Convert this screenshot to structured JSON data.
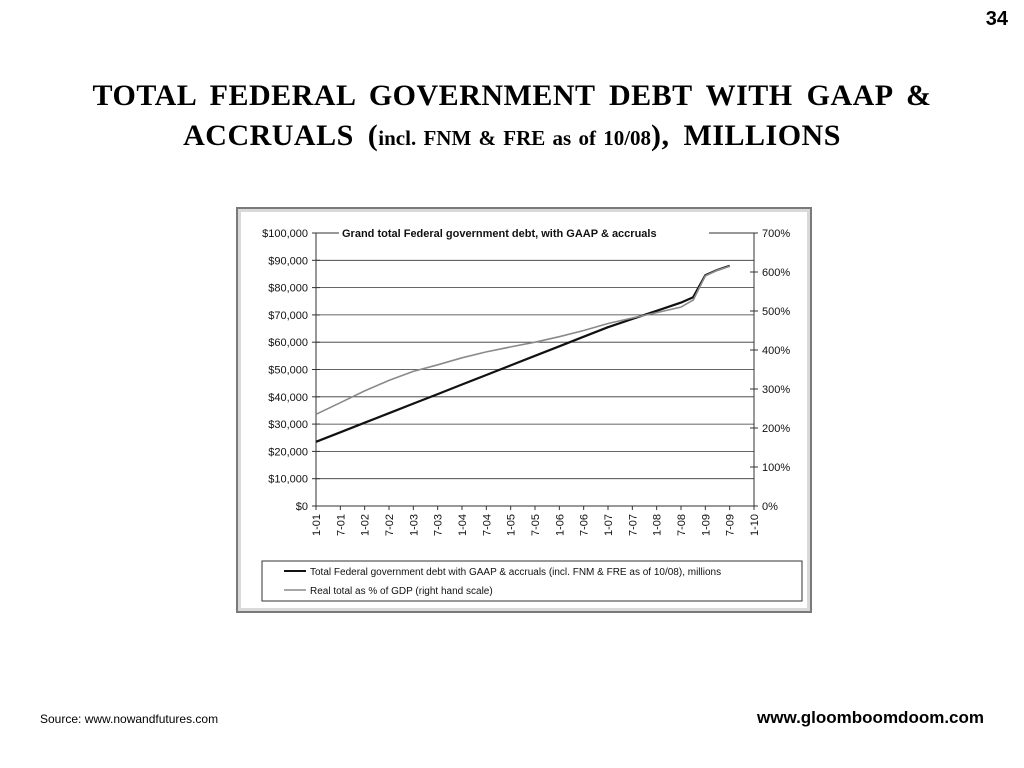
{
  "page": {
    "number": "34",
    "title_main": "TOTAL FEDERAL GOVERNMENT DEBT WITH GAAP & ACCRUALS (",
    "title_sub": "incl. FNM & FRE as of 10/08",
    "title_end": "), MILLIONS",
    "source": "Source: www.nowandfutures.com",
    "url": "www.gloomboomdoom.com"
  },
  "colors": {
    "debt_line": "#111111",
    "gdp_line": "#8a8a8a",
    "grid": "#333333"
  },
  "chart_data": {
    "type": "line",
    "title": "Grand total Federal government debt, with GAAP & accruals",
    "xlabel": "",
    "ylabel": "",
    "ylim": [
      0,
      100000
    ],
    "y2lim": [
      0,
      7
    ],
    "grid": true,
    "legend_position": "bottom",
    "x_ticks": [
      "1-01",
      "7-01",
      "1-02",
      "7-02",
      "1-03",
      "7-03",
      "1-04",
      "7-04",
      "1-05",
      "7-05",
      "1-06",
      "7-06",
      "1-07",
      "7-07",
      "1-08",
      "7-08",
      "1-09",
      "7-09",
      "1-10"
    ],
    "y_ticks": [
      "$0",
      "$10,000",
      "$20,000",
      "$30,000",
      "$40,000",
      "$50,000",
      "$60,000",
      "$70,000",
      "$80,000",
      "$90,000",
      "$100,000"
    ],
    "y2_ticks": [
      "0%",
      "100%",
      "200%",
      "300%",
      "400%",
      "500%",
      "600%",
      "700%"
    ],
    "series": [
      {
        "name": "Total Federal government debt with GAAP & accruals (incl. FNM & FRE as of 10/08), millions",
        "axis": "left",
        "points": [
          [
            0,
            23500
          ],
          [
            1,
            27000
          ],
          [
            2,
            30500
          ],
          [
            3,
            34000
          ],
          [
            4,
            37500
          ],
          [
            5,
            41000
          ],
          [
            6,
            44500
          ],
          [
            7,
            48000
          ],
          [
            8,
            51500
          ],
          [
            9,
            55000
          ],
          [
            10,
            58500
          ],
          [
            11,
            62000
          ],
          [
            12,
            65500
          ],
          [
            13,
            68500
          ],
          [
            14,
            71500
          ],
          [
            15,
            74500
          ],
          [
            15.5,
            76500
          ],
          [
            16,
            84500
          ],
          [
            16.5,
            86500
          ],
          [
            17,
            88000
          ]
        ]
      },
      {
        "name": "Real total as % of GDP (right hand scale)",
        "axis": "right",
        "points": [
          [
            0,
            2.35
          ],
          [
            1,
            2.65
          ],
          [
            2,
            2.95
          ],
          [
            3,
            3.22
          ],
          [
            4,
            3.45
          ],
          [
            5,
            3.62
          ],
          [
            6,
            3.8
          ],
          [
            7,
            3.95
          ],
          [
            8,
            4.08
          ],
          [
            9,
            4.2
          ],
          [
            10,
            4.34
          ],
          [
            11,
            4.5
          ],
          [
            12,
            4.68
          ],
          [
            13,
            4.82
          ],
          [
            14,
            4.96
          ],
          [
            15,
            5.1
          ],
          [
            15.5,
            5.28
          ],
          [
            16,
            5.9
          ],
          [
            16.5,
            6.05
          ],
          [
            17,
            6.15
          ]
        ]
      }
    ]
  }
}
